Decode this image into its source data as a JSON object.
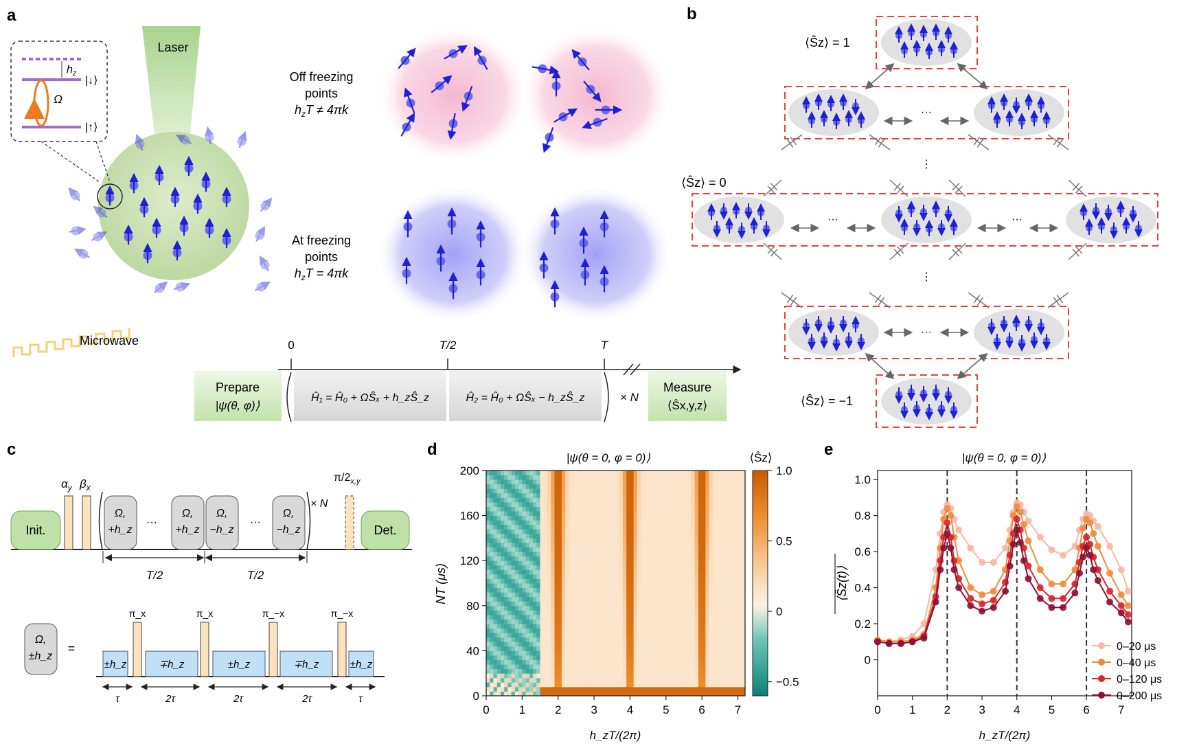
{
  "panel_labels": {
    "a": "a",
    "b": "b",
    "c": "c",
    "d": "d",
    "e": "e"
  },
  "panel_a": {
    "laser": "Laser",
    "microwave": "Microwave",
    "level_hz": "h",
    "level_hz_sub": "z",
    "level_down": "|↓⟩",
    "level_up": "|↑⟩",
    "omega": "Ω",
    "off_line1": "Off freezing",
    "off_line2": "points",
    "off_line3": "h",
    "off_line3_rest": "T ≠ 4πk",
    "at_line1": "At freezing",
    "at_line2": "points",
    "at_line3": "h",
    "at_line3_rest": "T = 4πk",
    "timeline": {
      "t0": "0",
      "t_half": "T/2",
      "t_full": "T",
      "prepare": "Prepare",
      "prepare_state": "|ψ(θ, φ)⟩",
      "h1": "Ĥ₁ = Ĥ₀ + ΩŜₓ + h_zŜ_z",
      "h2": "Ĥ₂ = Ĥ₀ + ΩŜₓ − h_zŜ_z",
      "repeat": "× N",
      "measure": "Measure",
      "measure_obs": "⟨Ŝx,y,z⟩"
    }
  },
  "panel_b": {
    "sz_1": "⟨Ŝz⟩ = 1",
    "sz_0": "⟨Ŝz⟩ = 0",
    "sz_m1": "⟨Ŝz⟩ = −1",
    "dots": "···",
    "vdots": "⋮"
  },
  "panel_c": {
    "init": "Init.",
    "det": "Det.",
    "alpha": "α",
    "alpha_sub": "y",
    "beta": "β",
    "beta_sub": "x",
    "pi2": "π/2",
    "pi2_sub": "x,y",
    "blocks": [
      {
        "l1": "Ω,",
        "l2": "+h_z"
      },
      {
        "l1": "Ω,",
        "l2": "+h_z"
      },
      {
        "l1": "Ω,",
        "l2": "−h_z"
      },
      {
        "l1": "Ω,",
        "l2": "−h_z"
      }
    ],
    "dots": "···",
    "repeat": "× N",
    "half1": "T/2",
    "half2": "T/2",
    "eq_block_l1": "Ω,",
    "eq_block_l2": "±h_z",
    "equals": "=",
    "pulses": [
      "π_x",
      "π_x",
      "π_−x",
      "π_−x"
    ],
    "segments": [
      "±h_z",
      "∓h_z",
      "±h_z",
      "∓h_z",
      "±h_z"
    ],
    "durations": [
      "τ",
      "2τ",
      "2τ",
      "2τ",
      "τ"
    ]
  },
  "panel_d": {
    "title": "|ψ(θ = 0, φ = 0)⟩",
    "ylabel": "NT (μs)",
    "xlabel": "h_zT/(2π)",
    "cbar_label": "⟨Ŝz⟩",
    "cbar_ticks": [
      "1.0",
      "0.5",
      "0",
      "−0.5"
    ],
    "colors": {
      "high": "#c85a00",
      "mid": "#fdf2e4",
      "low": "#0e8a82"
    }
  },
  "chart_data": [
    {
      "type": "heatmap",
      "title": "|ψ(θ = 0, φ = 0)⟩",
      "xlabel": "h_zT/(2π)",
      "ylabel": "NT (μs)",
      "xlim": [
        0,
        7.2
      ],
      "ylim": [
        0,
        200
      ],
      "x_ticks": [
        0,
        1,
        2,
        3,
        4,
        5,
        6,
        7
      ],
      "y_ticks": [
        0,
        40,
        80,
        120,
        160,
        200
      ],
      "colorbar": {
        "label": "⟨Ŝz⟩",
        "range": [
          -0.6,
          1.0
        ],
        "ticks": [
          1.0,
          0.5,
          0,
          -0.5
        ]
      },
      "peaks_x": [
        2,
        4,
        6
      ],
      "notes": "High ⟨Ŝz⟩ at h_zT/(2π)=2,4,6; negative near 0–1.5"
    },
    {
      "type": "line",
      "title": "|ψ(θ = 0, φ = 0)⟩",
      "xlabel": "h_zT/(2π)",
      "ylabel": "⟨Ŝz(t)⟩ (time-averaged)",
      "xlim": [
        0,
        7.3
      ],
      "ylim": [
        -0.2,
        1.05
      ],
      "x_ticks": [
        0,
        1,
        2,
        3,
        4,
        5,
        6,
        7
      ],
      "y_ticks": [
        0,
        0.2,
        0.4,
        0.6,
        0.8,
        1.0
      ],
      "vlines": [
        2,
        4,
        6
      ],
      "x": [
        0,
        0.33,
        0.67,
        1,
        1.33,
        1.67,
        1.8,
        1.9,
        2,
        2.1,
        2.2,
        2.33,
        2.67,
        3,
        3.33,
        3.67,
        3.8,
        3.9,
        4,
        4.1,
        4.2,
        4.33,
        4.67,
        5,
        5.33,
        5.67,
        5.8,
        5.9,
        6,
        6.1,
        6.2,
        6.33,
        6.67,
        7,
        7.2
      ],
      "series": [
        {
          "name": "0–20 μs",
          "color": "#f5b8a6",
          "values": [
            0.11,
            0.1,
            0.11,
            0.13,
            0.2,
            0.5,
            0.7,
            0.82,
            0.86,
            0.84,
            0.78,
            0.72,
            0.62,
            0.54,
            0.54,
            0.62,
            0.72,
            0.82,
            0.87,
            0.86,
            0.82,
            0.77,
            0.68,
            0.61,
            0.58,
            0.63,
            0.72,
            0.78,
            0.81,
            0.8,
            0.77,
            0.74,
            0.63,
            0.5,
            0.38
          ]
        },
        {
          "name": "0–40 μs",
          "color": "#f08a3e",
          "values": [
            0.11,
            0.1,
            0.1,
            0.11,
            0.14,
            0.4,
            0.62,
            0.78,
            0.84,
            0.8,
            0.68,
            0.55,
            0.4,
            0.36,
            0.38,
            0.5,
            0.66,
            0.8,
            0.85,
            0.82,
            0.75,
            0.66,
            0.5,
            0.42,
            0.42,
            0.5,
            0.62,
            0.73,
            0.78,
            0.76,
            0.7,
            0.63,
            0.48,
            0.36,
            0.3
          ]
        },
        {
          "name": "0–120 μs",
          "color": "#d8232a",
          "values": [
            0.1,
            0.09,
            0.09,
            0.1,
            0.13,
            0.35,
            0.55,
            0.68,
            0.76,
            0.68,
            0.55,
            0.45,
            0.34,
            0.31,
            0.33,
            0.43,
            0.58,
            0.7,
            0.78,
            0.72,
            0.62,
            0.52,
            0.4,
            0.34,
            0.34,
            0.42,
            0.54,
            0.63,
            0.68,
            0.64,
            0.57,
            0.5,
            0.38,
            0.3,
            0.25
          ]
        },
        {
          "name": "0–200 μs",
          "color": "#8c1030",
          "values": [
            0.1,
            0.09,
            0.09,
            0.1,
            0.12,
            0.32,
            0.5,
            0.62,
            0.7,
            0.62,
            0.5,
            0.4,
            0.3,
            0.27,
            0.29,
            0.38,
            0.52,
            0.64,
            0.72,
            0.65,
            0.55,
            0.45,
            0.34,
            0.29,
            0.29,
            0.37,
            0.48,
            0.57,
            0.62,
            0.58,
            0.5,
            0.44,
            0.32,
            0.26,
            0.21
          ]
        }
      ]
    }
  ],
  "panel_e": {
    "title": "|ψ(θ = 0, φ = 0)⟩",
    "xlabel": "h_zT/(2π)",
    "ylabel": "⟨Ŝz(t)⟩",
    "legend": [
      "0–20 μs",
      "0–40 μs",
      "0–120 μs",
      "0–200 μs"
    ]
  }
}
